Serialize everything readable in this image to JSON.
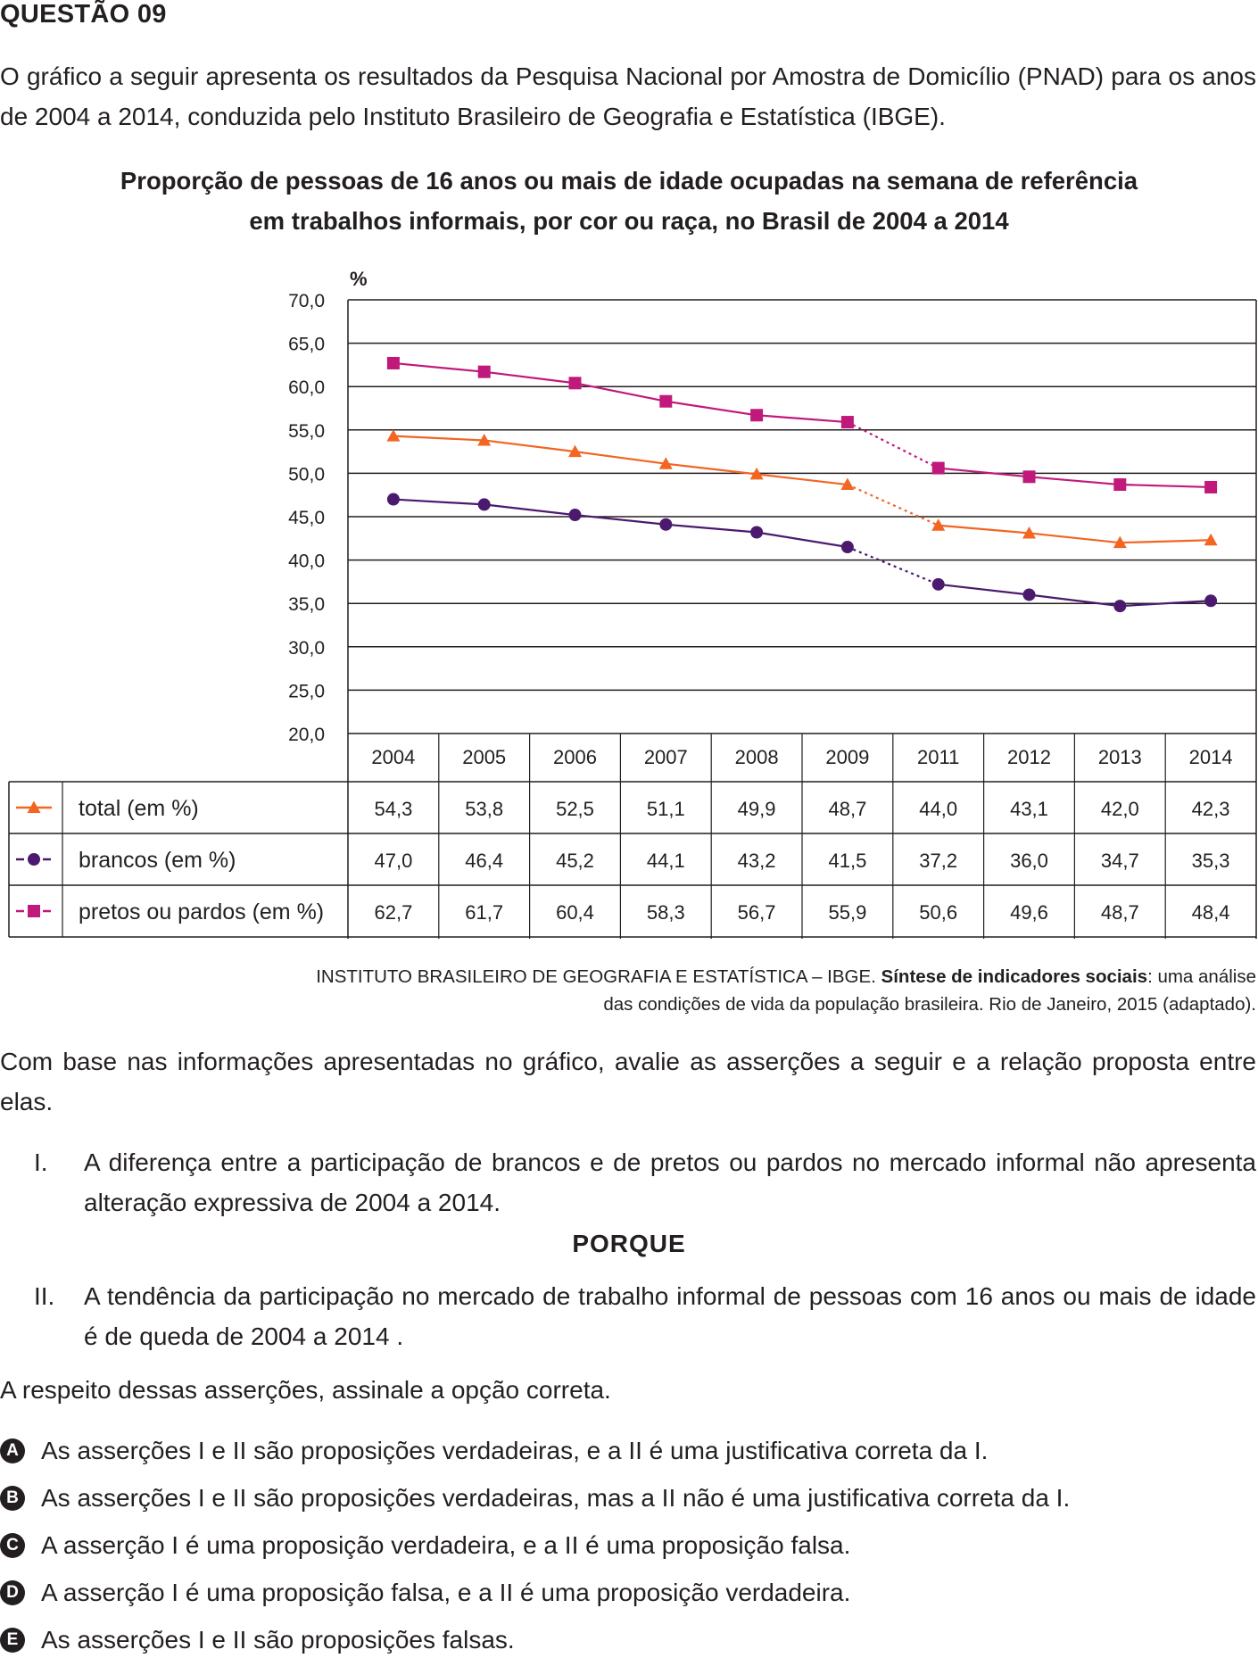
{
  "question": {
    "title": "QUESTÃO 09",
    "intro": "O gráfico a seguir apresenta os resultados da Pesquisa Nacional por Amostra de Domicílio (PNAD) para os anos de 2004 a 2014, conduzida pelo Instituto Brasileiro de Geografia e Estatística (IBGE).",
    "source_line1_plain": "INSTITUTO BRASILEIRO DE GEOGRAFIA E ESTATÍSTICA – IBGE. ",
    "source_line1_bold": "Síntese de indicadores sociais",
    "source_line1_rest": ": uma análise",
    "source_line2": "das condições de vida da população brasileira. Rio de Janeiro, 2015 (adaptado).",
    "prompt": "Com base nas informações apresentadas no gráfico, avalie as asserções a seguir e a relação proposta entre elas.",
    "assertion_1_num": "I.",
    "assertion_1": "A diferença entre a participação de brancos e de pretos ou pardos no mercado informal não apresenta alteração expressiva de 2004 a 2014.",
    "connector": "PORQUE",
    "assertion_2_num": "II.",
    "assertion_2": "A tendência da participação no mercado de trabalho informal de pessoas com 16 anos ou mais de idade é de queda de 2004 a 2014 .",
    "instruction": "A respeito dessas asserções, assinale a opção correta.",
    "options": [
      {
        "letter": "A",
        "text": "As asserções I e II são proposições verdadeiras, e a II é uma justificativa correta da I."
      },
      {
        "letter": "B",
        "text": "As asserções I e II são proposições verdadeiras, mas a II não é uma justificativa correta da I."
      },
      {
        "letter": "C",
        "text": "A asserção I é uma proposição verdadeira, e a II é uma proposição falsa."
      },
      {
        "letter": "D",
        "text": "A asserção I é uma proposição falsa, e a II é uma proposição verdadeira."
      },
      {
        "letter": "E",
        "text": "As asserções I e II são proposições falsas."
      }
    ]
  },
  "chart_data": {
    "type": "line",
    "title": "Proporção de pessoas de 16 anos ou mais de idade ocupadas na semana de referência em trabalhos informais, por cor ou raça, no Brasil de 2004 a 2014",
    "title_line1": "Proporção de pessoas de 16 anos ou mais de idade ocupadas na semana de referência",
    "title_line2": "em trabalhos informais, por cor ou raça, no Brasil de 2004 a 2014",
    "ylabel": "%",
    "ylim": [
      20,
      70
    ],
    "y_ticks": [
      "70,0",
      "65,0",
      "60,0",
      "55,0",
      "50,0",
      "45,0",
      "40,0",
      "35,0",
      "30,0",
      "25,0",
      "20,0"
    ],
    "y_tick_values": [
      70,
      65,
      60,
      55,
      50,
      45,
      40,
      35,
      30,
      25,
      20
    ],
    "categories": [
      "2004",
      "2005",
      "2006",
      "2007",
      "2008",
      "2009",
      "2011",
      "2012",
      "2013",
      "2014"
    ],
    "grid": "horizontal",
    "legend": "data table below the plot",
    "note": "Dotted segment between 2009 and 2011",
    "series": [
      {
        "name": "total (em %)",
        "marker": "triangle",
        "color": "#f26522",
        "values": [
          54.3,
          53.8,
          52.5,
          51.1,
          49.9,
          48.7,
          44.0,
          43.1,
          42.0,
          42.3
        ],
        "labels": [
          "54,3",
          "53,8",
          "52,5",
          "51,1",
          "49,9",
          "48,7",
          "44,0",
          "43,1",
          "42,0",
          "42,3"
        ]
      },
      {
        "name": "brancos (em %)",
        "marker": "circle",
        "color": "#4b1a6e",
        "values": [
          47.0,
          46.4,
          45.2,
          44.1,
          43.2,
          41.5,
          37.2,
          36.0,
          34.7,
          35.3
        ],
        "labels": [
          "47,0",
          "46,4",
          "45,2",
          "44,1",
          "43,2",
          "41,5",
          "37,2",
          "36,0",
          "34,7",
          "35,3"
        ]
      },
      {
        "name": "pretos ou pardos (em %)",
        "marker": "square",
        "color": "#c0197b",
        "values": [
          62.7,
          61.7,
          60.4,
          58.3,
          56.7,
          55.9,
          50.6,
          49.6,
          48.7,
          48.4
        ],
        "labels": [
          "62,7",
          "61,7",
          "60,4",
          "58,3",
          "56,7",
          "55,9",
          "50,6",
          "49,6",
          "48,7",
          "48,4"
        ]
      }
    ]
  }
}
